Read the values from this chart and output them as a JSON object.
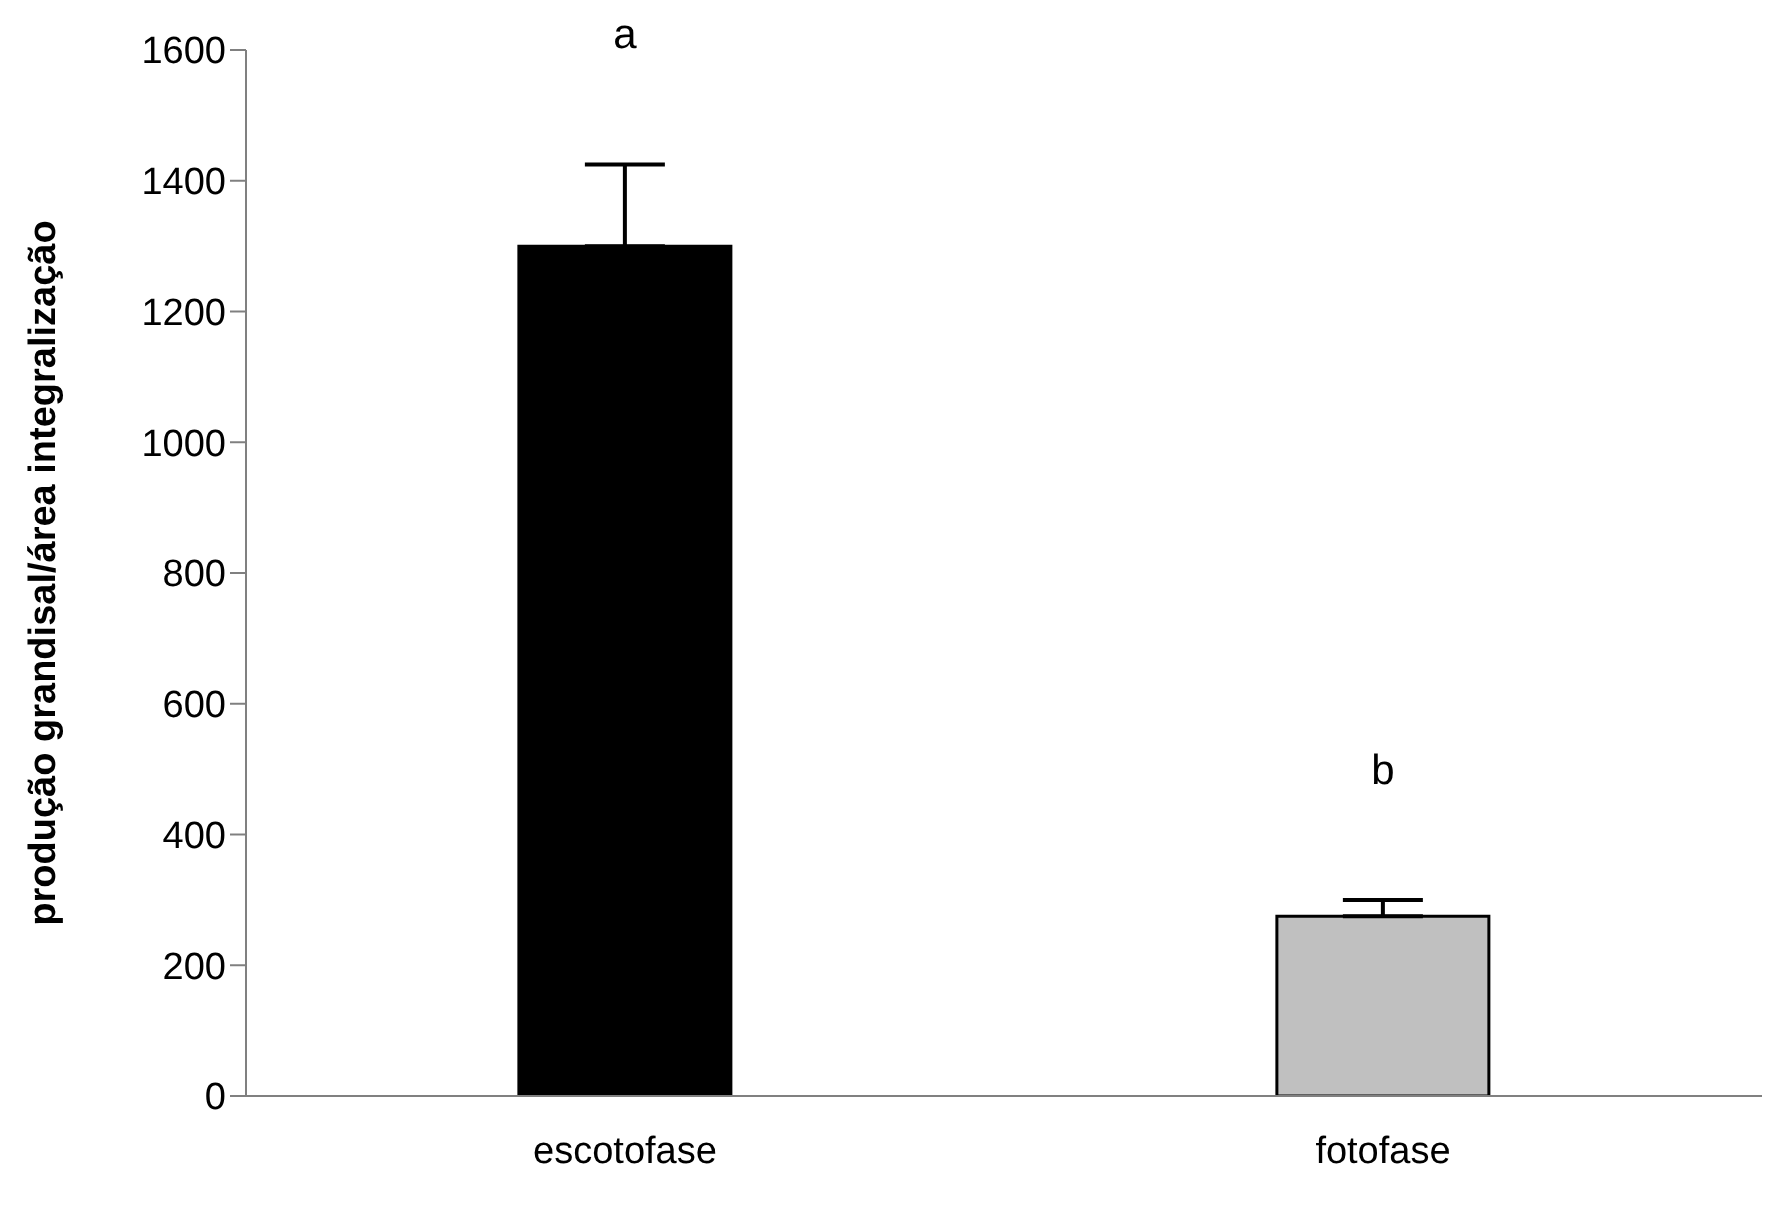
{
  "chart_data": {
    "type": "bar",
    "ylabel": "produção grandisal/área integralização",
    "categories": [
      "escotofase",
      "fotofase"
    ],
    "values": [
      1300,
      275
    ],
    "errors": [
      125,
      25
    ],
    "colors": [
      "#000000",
      "#c0c0c0"
    ],
    "ylim": [
      0,
      1600
    ],
    "yticks": [
      0,
      200,
      400,
      600,
      800,
      1000,
      1200,
      1400,
      1600
    ],
    "grid": false,
    "legend": false,
    "annotations": [
      "a",
      "b"
    ]
  }
}
